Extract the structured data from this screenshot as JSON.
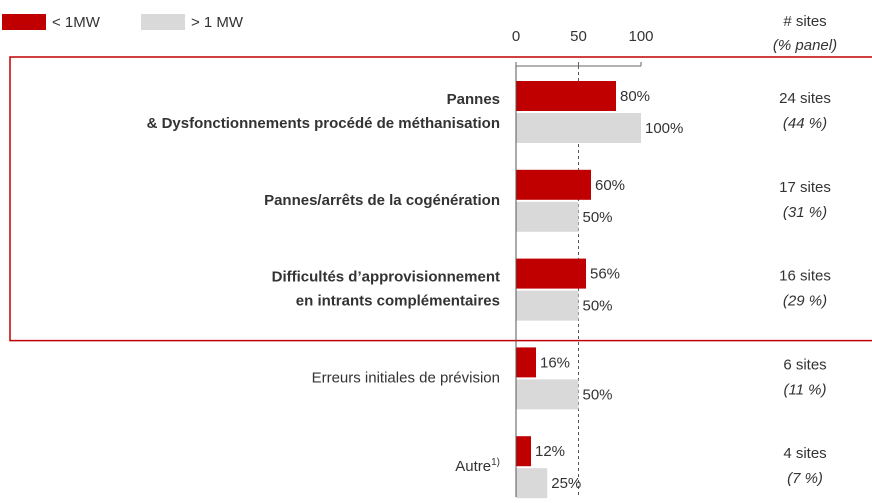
{
  "chart_data": {
    "type": "hbar",
    "categories": [
      [
        "Pannes",
        "& Dysfonctionnements procédé de méthanisation"
      ],
      [
        "Pannes/arrêts de la cogénération"
      ],
      [
        "Difficultés d’approvisionnement",
        "en intrants complémentaires"
      ],
      [
        "Erreurs initiales de prévision"
      ],
      [
        "Autre"
      ]
    ],
    "footnote_marks": [
      null,
      null,
      null,
      null,
      "1)"
    ],
    "highlighted": [
      true,
      true,
      true,
      false,
      false
    ],
    "highlight_color": "#c00000",
    "series": [
      {
        "name": "< 1MW",
        "color": "#c00000",
        "values": [
          80,
          60,
          56,
          16,
          12
        ],
        "value_labels": [
          "80%",
          "60%",
          "56%",
          "16%",
          "12%"
        ]
      },
      {
        "name": "> 1 MW",
        "color": "#d9d9d9",
        "values": [
          100,
          50,
          50,
          50,
          25
        ],
        "value_labels": [
          "100%",
          "50%",
          "50%",
          "50%",
          "25%"
        ]
      }
    ],
    "xlim": [
      0,
      100
    ],
    "xticks": [
      0,
      50,
      100
    ],
    "side_header": [
      "# sites",
      "(% panel)"
    ],
    "sites_labels": [
      "24 sites",
      "17 sites",
      "16 sites",
      "6 sites",
      "4 sites"
    ],
    "panel_labels": [
      "(44 %)",
      "(31 %)",
      "(29 %)",
      "(11 %)",
      "(7 %)"
    ]
  }
}
